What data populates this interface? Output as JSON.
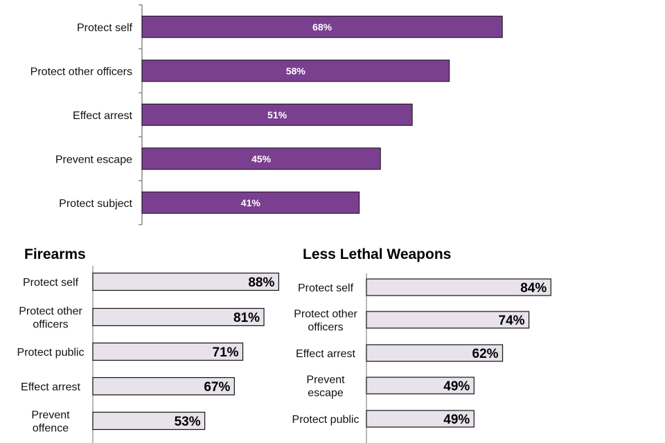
{
  "chart_data": [
    {
      "type": "bar",
      "orientation": "horizontal",
      "title": "",
      "categories": [
        "Protect self",
        "Protect other officers",
        "Effect arrest",
        "Prevent escape",
        "Protect subject"
      ],
      "values": [
        68,
        58,
        51,
        45,
        41
      ],
      "value_labels": [
        "68%",
        "58%",
        "51%",
        "45%",
        "41%"
      ],
      "xlim": [
        0,
        100
      ],
      "unit": "%",
      "bar_color": "#7b3f8f"
    },
    {
      "type": "bar",
      "orientation": "horizontal",
      "title": "Firearms",
      "categories": [
        "Protect self",
        "Protect other officers",
        "Protect public",
        "Effect arrest",
        "Prevent offence"
      ],
      "category_lines": [
        [
          "Protect self"
        ],
        [
          "Protect other",
          "officers"
        ],
        [
          "Protect public"
        ],
        [
          "Effect arrest"
        ],
        [
          "Prevent",
          "offence"
        ]
      ],
      "values": [
        88,
        81,
        71,
        67,
        53
      ],
      "value_labels": [
        "88%",
        "81%",
        "71%",
        "67%",
        "53%"
      ],
      "xlim": [
        0,
        100
      ],
      "unit": "%",
      "bar_color": "#e8e2ea"
    },
    {
      "type": "bar",
      "orientation": "horizontal",
      "title": "Less Lethal Weapons",
      "categories": [
        "Protect self",
        "Protect other officers",
        "Effect arrest",
        "Prevent escape",
        "Protect public"
      ],
      "category_lines": [
        [
          "Protect self"
        ],
        [
          "Protect other",
          "officers"
        ],
        [
          "Effect arrest"
        ],
        [
          "Prevent",
          "escape"
        ],
        [
          "Protect public"
        ]
      ],
      "values": [
        84,
        74,
        62,
        49,
        49
      ],
      "value_labels": [
        "84%",
        "74%",
        "62%",
        "49%",
        "49%"
      ],
      "xlim": [
        0,
        100
      ],
      "unit": "%",
      "bar_color": "#e8e2ea"
    }
  ]
}
